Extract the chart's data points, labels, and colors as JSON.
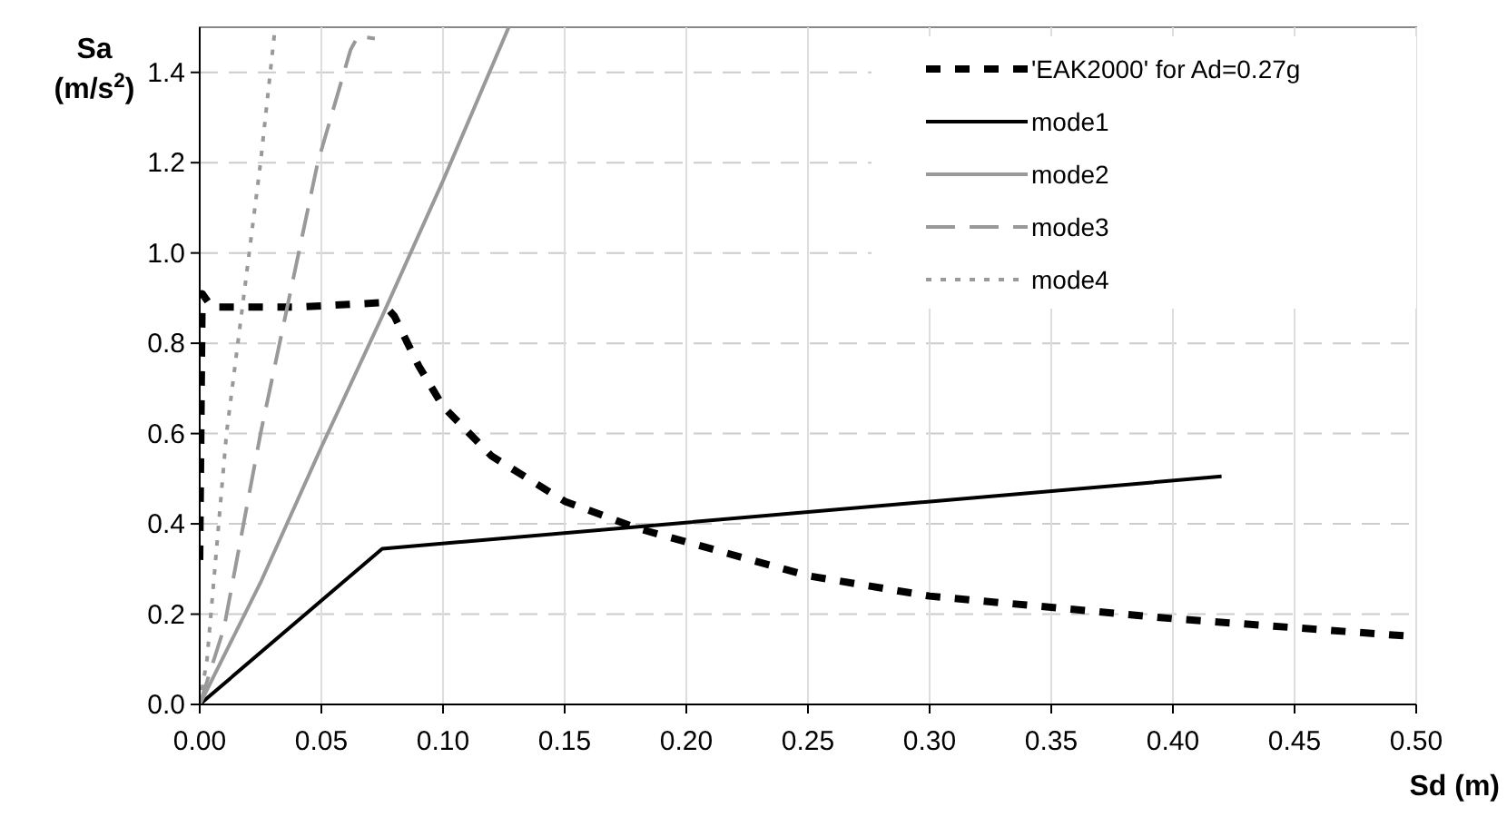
{
  "chart_data": {
    "type": "line",
    "xlabel": "Sd (m)",
    "ylabel": "Sa (m/s$^{2}$)",
    "xlim": [
      0,
      0.5
    ],
    "ylim": [
      0,
      1.5
    ],
    "xticks": [
      {
        "value": 0,
        "label": "0.00"
      },
      {
        "value": 0.05,
        "label": "0.05"
      },
      {
        "value": 0.1,
        "label": "0.10"
      },
      {
        "value": 0.15,
        "label": "0.15"
      },
      {
        "value": 0.2,
        "label": "0.20"
      },
      {
        "value": 0.25,
        "label": "0.25"
      },
      {
        "value": 0.3,
        "label": "0.30"
      },
      {
        "value": 0.35,
        "label": "0.35"
      },
      {
        "value": 0.4,
        "label": "0.40"
      },
      {
        "value": 0.45,
        "label": "0.45"
      },
      {
        "value": 0.5,
        "label": "0.50"
      }
    ],
    "yticks": [
      {
        "value": 0,
        "label": "0.0"
      },
      {
        "value": 0.2,
        "label": "0.2"
      },
      {
        "value": 0.4,
        "label": "0.4"
      },
      {
        "value": 0.6,
        "label": "0.6"
      },
      {
        "value": 0.8,
        "label": "0.8"
      },
      {
        "value": 1,
        "label": "1.0"
      },
      {
        "value": 1.2,
        "label": "1.2"
      },
      {
        "value": 1.4,
        "label": "1.4"
      }
    ],
    "grid": true,
    "legend": "top right",
    "marker": "none",
    "series": [
      {
        "name": "'EAK2000' for Ad=0.27g",
        "color": "#000000",
        "line_style": "dashed",
        "x": [
          0,
          0.001,
          0.005,
          0.04,
          0.075,
          0.08,
          0.09,
          0.1,
          0.12,
          0.15,
          0.18,
          0.2,
          0.25,
          0.3,
          0.35,
          0.4,
          0.45,
          0.5
        ],
        "values": [
          0.32,
          0.91,
          0.88,
          0.88,
          0.89,
          0.86,
          0.75,
          0.66,
          0.55,
          0.45,
          0.39,
          0.36,
          0.285,
          0.24,
          0.215,
          0.19,
          0.17,
          0.15
        ]
      },
      {
        "name": "mode1",
        "color": "#000000",
        "line_style": "solid",
        "x": [
          0,
          0.075,
          0.42
        ],
        "values": [
          0,
          0.345,
          0.505
        ]
      },
      {
        "name": "mode2",
        "color": "#999999",
        "line_style": "solid",
        "x": [
          0,
          0.025,
          0.05,
          0.075,
          0.1,
          0.127
        ],
        "values": [
          0,
          0.27,
          0.57,
          0.86,
          1.16,
          1.5
        ]
      },
      {
        "name": "mode3",
        "color": "#999999",
        "line_style": "dashed",
        "x": [
          0,
          0.01,
          0.025,
          0.0485,
          0.062,
          0.065,
          0.072
        ],
        "values": [
          0,
          0.17,
          0.6,
          1.2,
          1.45,
          1.48,
          1.475
        ]
      },
      {
        "name": "mode4",
        "color": "#999999",
        "line_style": "dotted",
        "x": [
          0,
          0.003,
          0.011,
          0.025,
          0.031
        ],
        "values": [
          0,
          0.1,
          0.6,
          1.2,
          1.5
        ]
      }
    ]
  }
}
